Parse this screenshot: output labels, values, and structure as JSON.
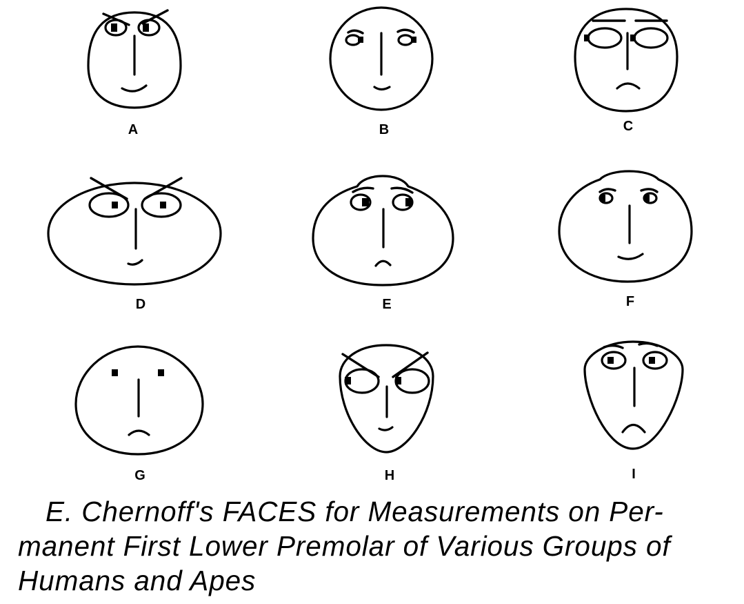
{
  "figure": {
    "faces": [
      {
        "label": "A"
      },
      {
        "label": "B"
      },
      {
        "label": "C"
      },
      {
        "label": "D"
      },
      {
        "label": "E"
      },
      {
        "label": "F"
      },
      {
        "label": "G"
      },
      {
        "label": "H"
      },
      {
        "label": "I"
      }
    ]
  },
  "caption": {
    "lines": [
      "E. Chernoff's FACES for Measurements on Per-",
      "manent First Lower Premolar of Various Groups of",
      "Humans and Apes"
    ]
  }
}
